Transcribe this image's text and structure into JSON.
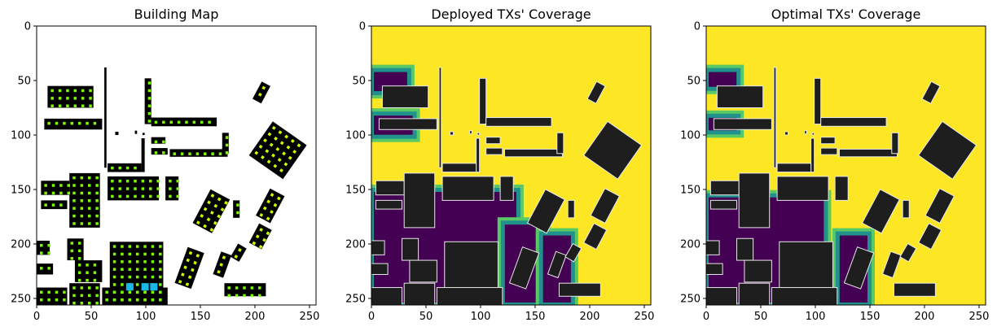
{
  "chart_data": [
    {
      "type": "heatmap",
      "title": "Building Map",
      "xlim": [
        0,
        256
      ],
      "ylim": [
        256,
        0
      ],
      "xticks": [
        0,
        50,
        100,
        150,
        200,
        250
      ],
      "yticks": [
        0,
        50,
        100,
        150,
        200,
        250
      ],
      "grid": false,
      "palette": {
        "background": "#ffffff",
        "building": "#000000",
        "candidate": "#7cf800",
        "candidate_alt": "#c8ff00",
        "deployed": "#18b8e8"
      },
      "buildings": [
        [
          10,
          55,
          52,
          75
        ],
        [
          7,
          85,
          60,
          95
        ],
        [
          62,
          38,
          64,
          130
        ],
        [
          72,
          97,
          75,
          100
        ],
        [
          90,
          96,
          92,
          99
        ],
        [
          97,
          98,
          99,
          100
        ],
        [
          96,
          103,
          99,
          134
        ],
        [
          65,
          126,
          96,
          134
        ],
        [
          99,
          48,
          105,
          90
        ],
        [
          105,
          84,
          165,
          92
        ],
        [
          105,
          102,
          118,
          108
        ],
        [
          105,
          112,
          120,
          118
        ],
        [
          122,
          113,
          175,
          120
        ],
        [
          170,
          98,
          176,
          117
        ],
        [
          4,
          142,
          30,
          155
        ],
        [
          4,
          160,
          28,
          168
        ],
        [
          30,
          135,
          58,
          185
        ],
        [
          65,
          138,
          112,
          160
        ],
        [
          118,
          138,
          130,
          160
        ],
        [
          0,
          197,
          12,
          210
        ],
        [
          28,
          195,
          43,
          215
        ],
        [
          0,
          218,
          15,
          228
        ],
        [
          35,
          215,
          60,
          235
        ],
        [
          67,
          198,
          116,
          253
        ],
        [
          0,
          240,
          28,
          258
        ],
        [
          30,
          236,
          58,
          258
        ],
        [
          60,
          240,
          120,
          258
        ],
        [
          180,
          160,
          186,
          176
        ],
        [
          172,
          236,
          210,
          248
        ]
      ],
      "rotated_buildings": [
        {
          "cx": 206,
          "cy": 61,
          "w": 9,
          "h": 18,
          "angle": 28
        },
        {
          "cx": 221,
          "cy": 114,
          "w": 38,
          "h": 38,
          "angle": 35
        },
        {
          "cx": 160,
          "cy": 170,
          "w": 20,
          "h": 35,
          "angle": 28
        },
        {
          "cx": 214,
          "cy": 165,
          "w": 15,
          "h": 28,
          "angle": 28
        },
        {
          "cx": 205,
          "cy": 193,
          "w": 13,
          "h": 20,
          "angle": 28
        },
        {
          "cx": 140,
          "cy": 222,
          "w": 16,
          "h": 35,
          "angle": 20
        },
        {
          "cx": 170,
          "cy": 219,
          "w": 10,
          "h": 22,
          "angle": 20
        },
        {
          "cx": 185,
          "cy": 208,
          "w": 9,
          "h": 14,
          "angle": 30
        }
      ],
      "deployed_tx": [
        [
          82,
          236
        ],
        [
          96,
          236
        ],
        [
          104,
          236
        ]
      ]
    },
    {
      "type": "heatmap",
      "title": "Deployed TXs' Coverage",
      "xlim": [
        0,
        256
      ],
      "ylim": [
        256,
        0
      ],
      "xticks": [
        0,
        50,
        100,
        150,
        200,
        250
      ],
      "yticks": [
        0,
        50,
        100,
        150,
        200,
        250
      ],
      "grid": false,
      "colormap": "viridis",
      "palette": {
        "high": "#fde725",
        "mid": "#5ac864",
        "low": "#21918c",
        "none": "#440154",
        "building": "#1e1e1e"
      },
      "low_coverage_regions": [
        [
          0,
          40,
          35,
          62
        ],
        [
          0,
          80,
          40,
          102
        ],
        [
          0,
          150,
          135,
          256
        ],
        [
          120,
          180,
          160,
          256
        ],
        [
          155,
          190,
          185,
          256
        ]
      ]
    },
    {
      "type": "heatmap",
      "title": "Optimal TXs' Coverage",
      "xlim": [
        0,
        256
      ],
      "ylim": [
        256,
        0
      ],
      "xticks": [
        0,
        50,
        100,
        150,
        200,
        250
      ],
      "yticks": [
        0,
        50,
        100,
        150,
        200,
        250
      ],
      "grid": false,
      "colormap": "viridis",
      "palette": {
        "high": "#fde725",
        "mid": "#5ac864",
        "low": "#21918c",
        "none": "#440154",
        "building": "#1e1e1e"
      },
      "low_coverage_regions": [
        [
          0,
          40,
          30,
          58
        ],
        [
          0,
          82,
          30,
          98
        ],
        [
          0,
          155,
          110,
          256
        ],
        [
          120,
          190,
          150,
          256
        ]
      ]
    }
  ]
}
